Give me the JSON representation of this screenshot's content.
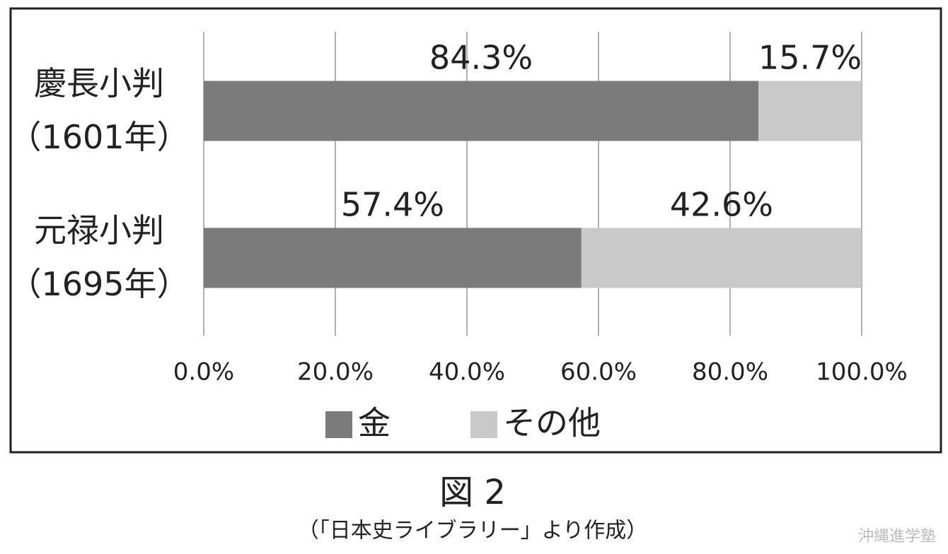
{
  "chart_data": {
    "type": "stacked-bar-horizontal",
    "categories": [
      "慶長小判（1601年）",
      "元禄小判（1695年）"
    ],
    "series": [
      {
        "name": "金",
        "color": "#7b7b7b",
        "values": [
          84.3,
          57.4
        ],
        "value_labels": [
          "84.3%",
          "57.4%"
        ]
      },
      {
        "name": "その他",
        "color": "#c9c9c9",
        "values": [
          15.7,
          42.6
        ],
        "value_labels": [
          "15.7%",
          "42.6%"
        ]
      }
    ],
    "xlim": [
      0,
      100
    ],
    "xticks": [
      {
        "value": 0,
        "label": "0.0%"
      },
      {
        "value": 20,
        "label": "20.0%"
      },
      {
        "value": 40,
        "label": "40.0%"
      },
      {
        "value": 60,
        "label": "60.0%"
      },
      {
        "value": 80,
        "label": "80.0%"
      },
      {
        "value": 100,
        "label": "100.0%"
      }
    ],
    "grid": true,
    "legend": "bottom"
  },
  "figure_caption": "図 2",
  "source_note": "（「日本史ライブラリー」より作成）",
  "watermark": "沖縄進学塾"
}
